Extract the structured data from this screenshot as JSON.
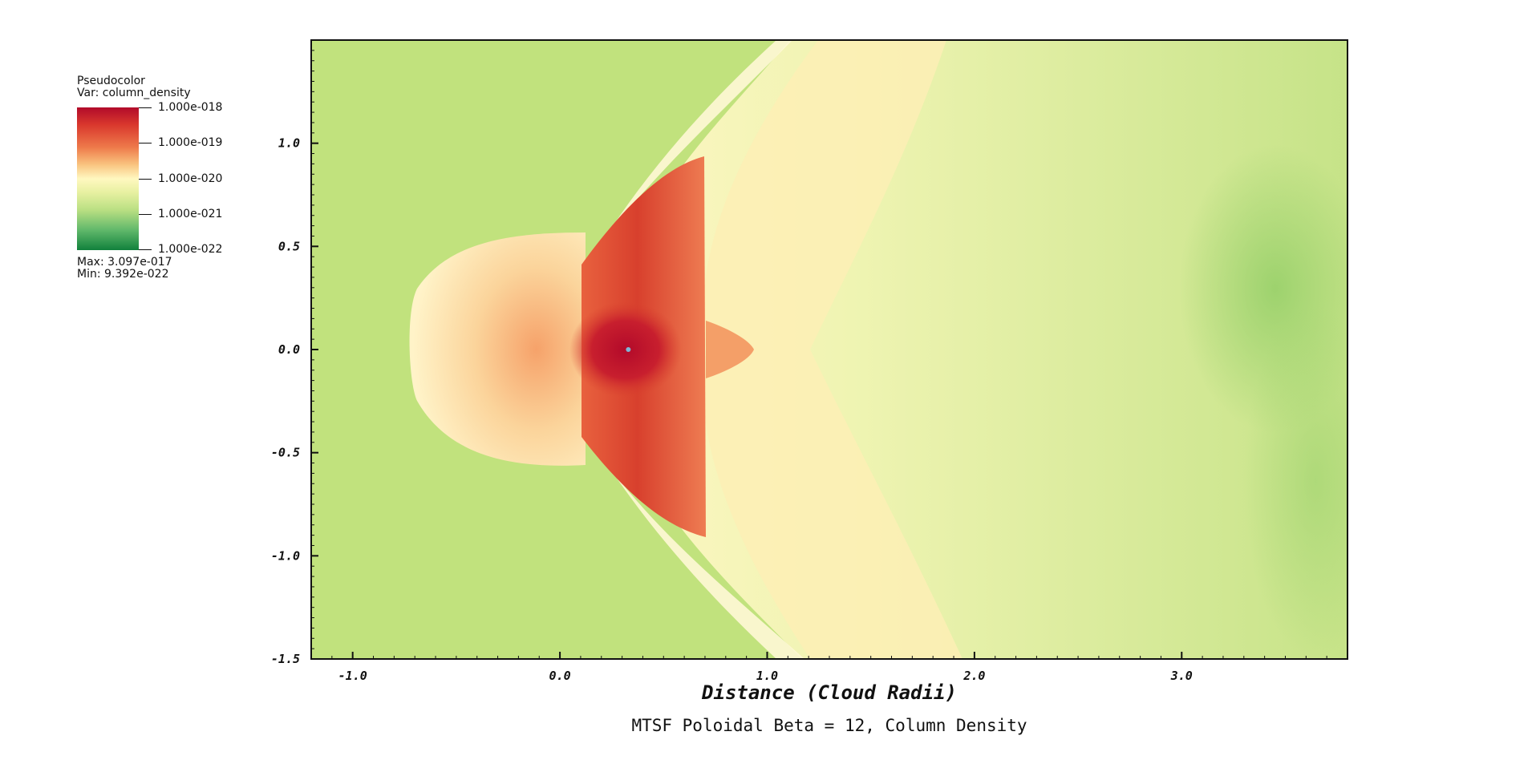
{
  "legend": {
    "plot_type": "Pseudocolor",
    "var_label": "Var: column_density",
    "ticks": [
      "1.000e-018",
      "1.000e-019",
      "1.000e-020",
      "1.000e-021",
      "1.000e-022"
    ],
    "max": "Max:  3.097e-017",
    "min": "Min:  9.392e-022",
    "colors": [
      "#b10b2a",
      "#ee7a4a",
      "#fff8c0",
      "#b9df82",
      "#11813c"
    ]
  },
  "chart_data": {
    "type": "heatmap",
    "title": "MTSF Poloidal Beta = 12, Column Density",
    "xlabel": "Distance (Cloud Radii)",
    "ylabel": "",
    "xlim": [
      -1.2,
      3.8
    ],
    "ylim": [
      -1.5,
      1.5
    ],
    "x_ticks": [
      -1.0,
      0.0,
      1.0,
      2.0,
      3.0
    ],
    "x_tick_labels": [
      "-1.0",
      "0.0",
      "1.0",
      "2.0",
      "3.0"
    ],
    "y_ticks": [
      1.0,
      0.5,
      0.0,
      -0.5,
      -1.0,
      -1.5
    ],
    "y_tick_labels": [
      "1.0",
      "0.5",
      "0.0",
      "-0.5",
      "-1.0",
      "-1.5"
    ],
    "colorbar_scale": "log",
    "colorbar_range": [
      1e-22,
      1e-18
    ],
    "background_color": "#c1e27d",
    "peak_location": [
      0.33,
      0.0
    ],
    "grid": false
  }
}
